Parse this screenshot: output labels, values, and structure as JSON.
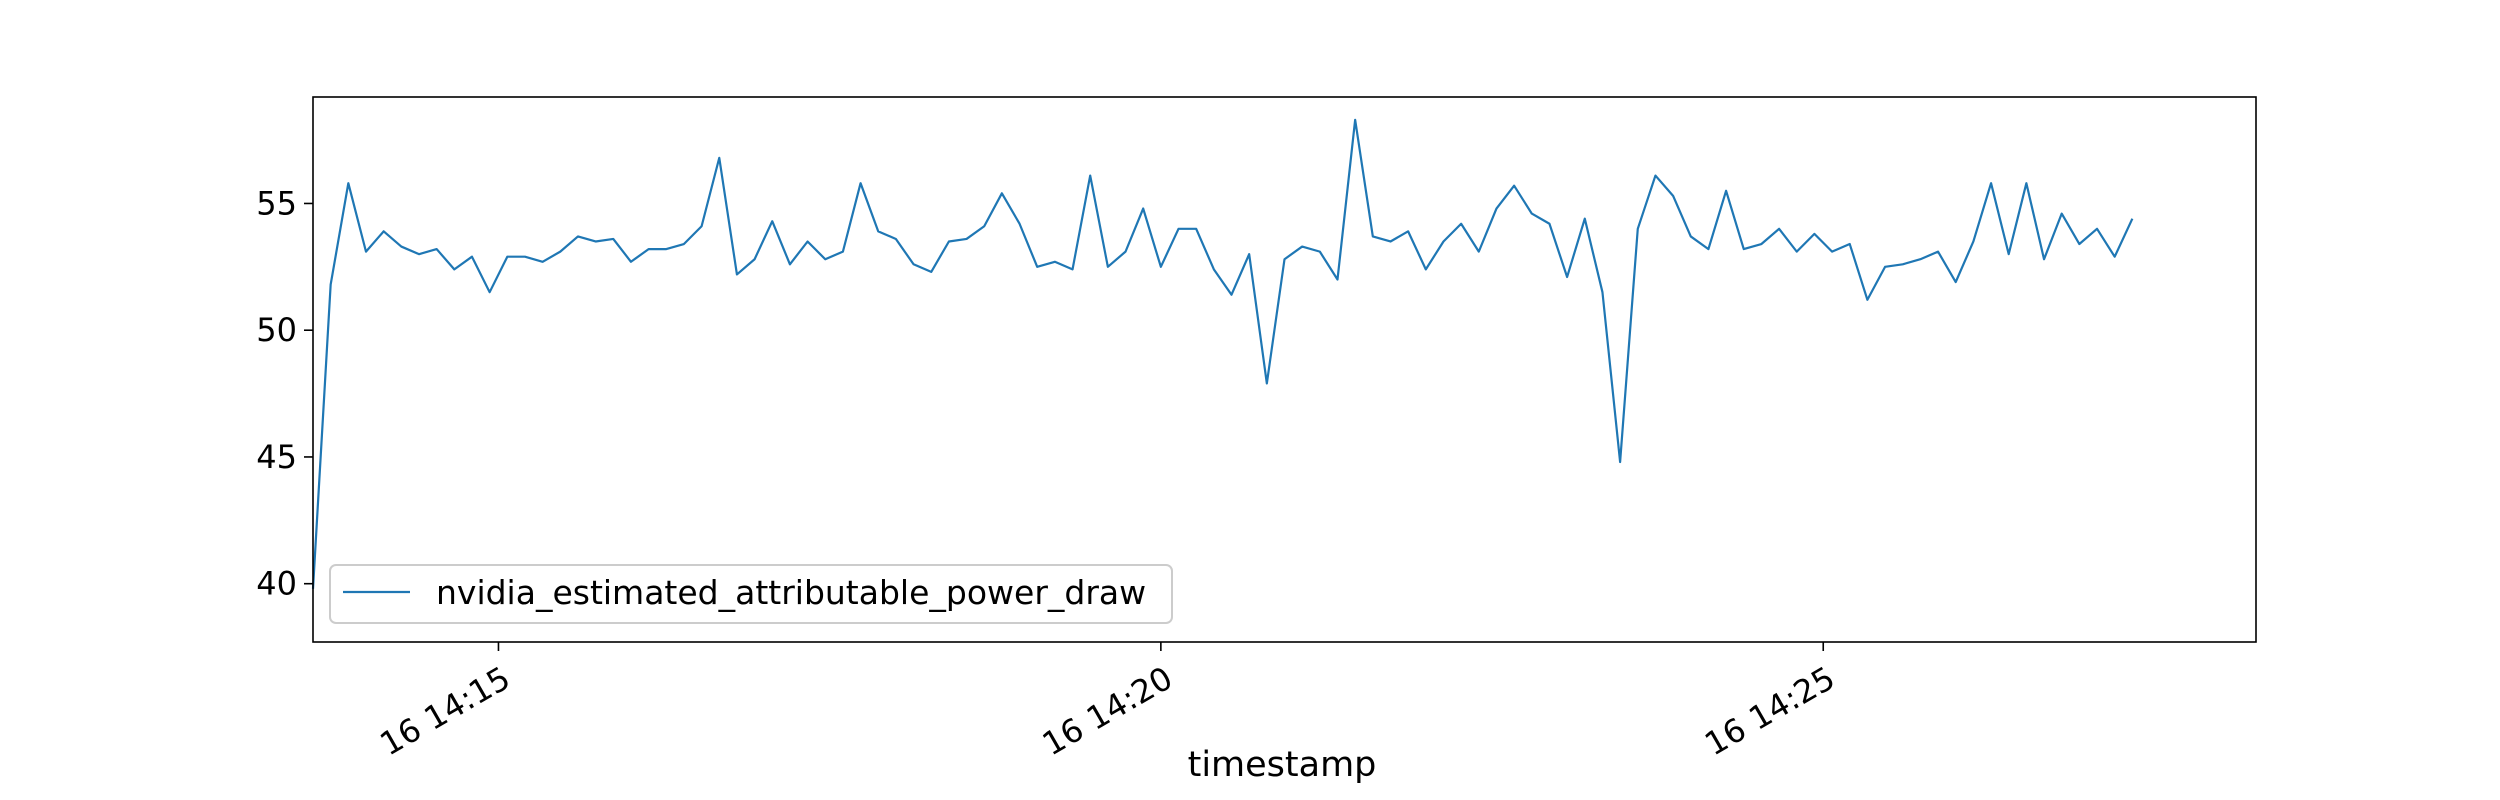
{
  "chart_data": {
    "type": "line",
    "title": "",
    "xlabel": "timestamp",
    "ylabel": "",
    "x_unit": "time",
    "x_start": "16 14:13:36",
    "x_end": "16 14:28:16",
    "xlim": [
      "16 14:13:36",
      "16 14:28:16"
    ],
    "ylim": [
      37.7,
      59.2
    ],
    "yticks": [
      40,
      45,
      50,
      55
    ],
    "xticks": [
      {
        "label": "16 14:15",
        "time": "16 14:15:00"
      },
      {
        "label": "16 14:20",
        "time": "16 14:20:00"
      },
      {
        "label": "16 14:25",
        "time": "16 14:25:00"
      }
    ],
    "grid": false,
    "legend": {
      "placement": "lower-left"
    },
    "series": [
      {
        "name": "nvidia_estimated_attributable_power_draw",
        "color": "#1f77b4",
        "x_start": "16 14:13:36",
        "x_step_seconds": 8,
        "values": [
          39.8,
          51.8,
          55.8,
          53.1,
          53.9,
          53.3,
          53.0,
          53.2,
          52.4,
          52.9,
          51.5,
          52.9,
          52.9,
          52.7,
          53.1,
          53.7,
          53.5,
          53.6,
          52.7,
          53.2,
          53.2,
          53.4,
          54.1,
          56.8,
          52.2,
          52.8,
          54.3,
          52.6,
          53.5,
          52.8,
          53.1,
          55.8,
          53.9,
          53.6,
          52.6,
          52.3,
          53.5,
          53.6,
          54.1,
          55.4,
          54.2,
          52.5,
          52.7,
          52.4,
          56.1,
          52.5,
          53.1,
          54.8,
          52.5,
          54.0,
          54.0,
          52.4,
          51.4,
          53.0,
          47.9,
          52.8,
          53.3,
          53.1,
          52.0,
          58.3,
          53.7,
          53.5,
          53.9,
          52.4,
          53.5,
          54.2,
          53.1,
          54.8,
          55.7,
          54.6,
          54.2,
          52.1,
          54.4,
          51.5,
          44.8,
          54.0,
          56.1,
          55.3,
          53.7,
          53.2,
          55.5,
          53.2,
          53.4,
          54.0,
          53.1,
          53.8,
          53.1,
          53.4,
          51.2,
          52.5,
          52.6,
          52.8,
          53.1,
          51.9,
          53.5,
          55.8,
          53.0,
          55.8,
          52.8,
          54.6,
          53.4,
          54.0,
          52.9,
          54.4
        ]
      }
    ]
  }
}
